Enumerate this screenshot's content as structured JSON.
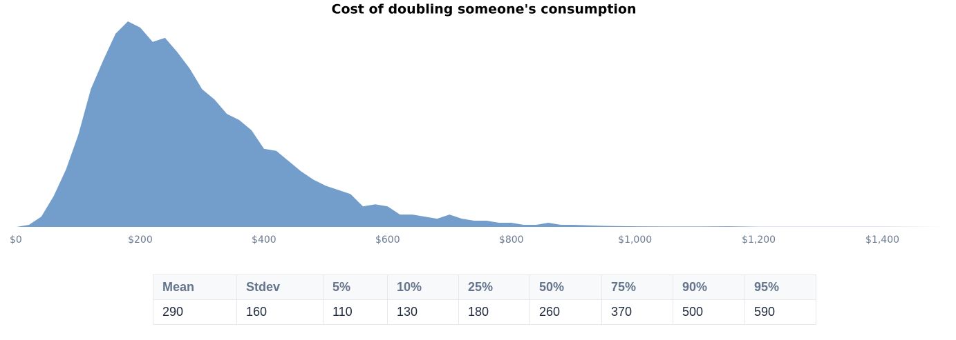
{
  "chart_data": {
    "type": "area",
    "title": "Cost of doubling someone's consumption",
    "x": [
      0,
      20,
      40,
      60,
      80,
      100,
      120,
      140,
      160,
      180,
      200,
      220,
      240,
      260,
      280,
      300,
      320,
      340,
      360,
      380,
      400,
      420,
      440,
      460,
      480,
      500,
      520,
      540,
      560,
      580,
      600,
      620,
      640,
      660,
      680,
      700,
      720,
      740,
      760,
      780,
      800,
      820,
      840,
      860,
      880,
      900,
      950,
      1000,
      1050,
      1100,
      1150,
      1200,
      1300,
      1400,
      1500
    ],
    "values": [
      0,
      1,
      5,
      15,
      28,
      45,
      67,
      81,
      94,
      100,
      97,
      90,
      92,
      85,
      77,
      67,
      62,
      55,
      52,
      47,
      38,
      37,
      32,
      27,
      23,
      20,
      18,
      16,
      10,
      11,
      10,
      6,
      6,
      5,
      4,
      6,
      4,
      3,
      3,
      2,
      2,
      1,
      1,
      2,
      1,
      1,
      0.5,
      0.3,
      0.2,
      0.2,
      0.3,
      0.1,
      0.1,
      0.1,
      0
    ],
    "color": "#739ecc",
    "xlim": [
      0,
      1500
    ],
    "ylim": [
      0,
      100
    ],
    "xticks": [
      {
        "value": 0,
        "label": "$0"
      },
      {
        "value": 200,
        "label": "$200"
      },
      {
        "value": 400,
        "label": "$400"
      },
      {
        "value": 600,
        "label": "$600"
      },
      {
        "value": 800,
        "label": "$800"
      },
      {
        "value": 1000,
        "label": "$1,000"
      },
      {
        "value": 1200,
        "label": "$1,200"
      },
      {
        "value": 1400,
        "label": "$1,400"
      }
    ]
  },
  "table": {
    "columns": [
      "Mean",
      "Stdev",
      "5%",
      "10%",
      "25%",
      "50%",
      "75%",
      "90%",
      "95%"
    ],
    "rows": [
      [
        "290",
        "160",
        "110",
        "130",
        "180",
        "260",
        "370",
        "500",
        "590"
      ]
    ]
  }
}
